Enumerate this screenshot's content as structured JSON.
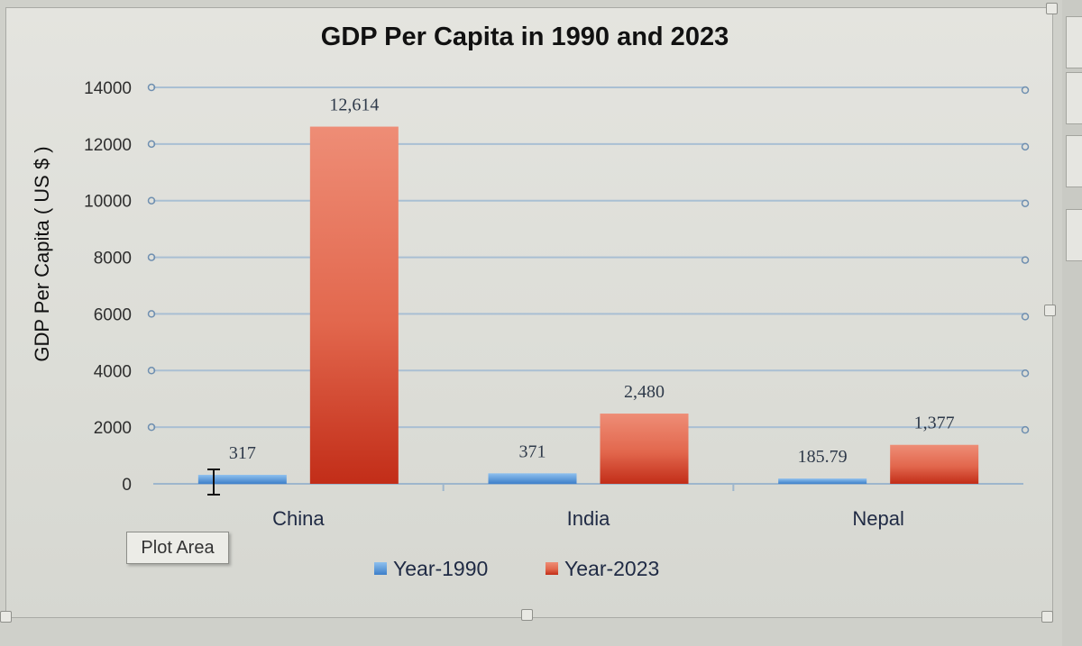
{
  "tooltip": {
    "text": "Plot Area"
  },
  "chart_data": {
    "type": "bar",
    "title": "GDP Per Capita in 1990 and 2023",
    "xlabel": "",
    "ylabel": "GDP Per Capita ( US $ )",
    "categories": [
      "China",
      "India",
      "Nepal"
    ],
    "series": [
      {
        "name": "Year-1990",
        "values": [
          317,
          371,
          185.79
        ],
        "labels": [
          "317",
          "371",
          "185.79"
        ],
        "color": "#4a8fd6"
      },
      {
        "name": "Year-2023",
        "values": [
          12614,
          2480,
          1377
        ],
        "labels": [
          "12,614",
          "2,480",
          "1,377"
        ],
        "color": "#d5472c"
      }
    ],
    "ylim": [
      0,
      14000
    ],
    "yticks": [
      "0",
      "2000",
      "4000",
      "6000",
      "8000",
      "10000",
      "12000",
      "14000"
    ],
    "ytick_values": [
      0,
      2000,
      4000,
      6000,
      8000,
      10000,
      12000,
      14000
    ],
    "grid": true,
    "legend_position": "bottom"
  }
}
